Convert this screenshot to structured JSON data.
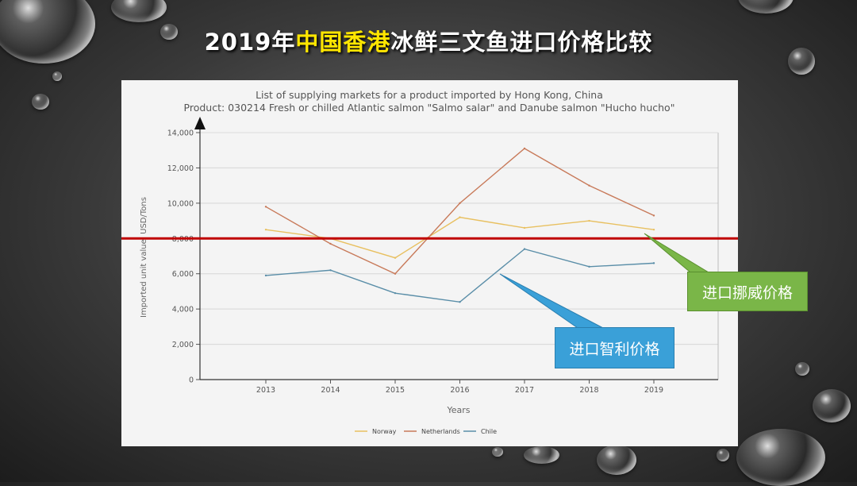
{
  "slide": {
    "title_prefix": "2019年",
    "title_highlight": "中国香港",
    "title_suffix": "冰鲜三文鱼进口价格比较"
  },
  "callouts": {
    "norway": "进口挪威价格",
    "chile": "进口智利价格"
  },
  "reference_line": {
    "value": 8000,
    "color": "#c00000"
  },
  "chart_data": {
    "type": "line",
    "title": "List of supplying markets for a product imported by Hong Kong, China",
    "subtitle": "Product: 030214 Fresh or chilled Atlantic salmon \"Salmo salar\" and Danube salmon \"Hucho hucho\"",
    "xlabel": "Years",
    "ylabel": "Imported unit value, USD/Tons",
    "x": [
      "2013",
      "2014",
      "2015",
      "2016",
      "2017",
      "2018",
      "2019"
    ],
    "ylim": [
      0,
      14000
    ],
    "yticks": [
      0,
      2000,
      4000,
      6000,
      8000,
      10000,
      12000,
      14000
    ],
    "ytick_labels": [
      "0",
      "2,000",
      "4,000",
      "6,000",
      "8,000",
      "10,000",
      "12,000",
      "14,000"
    ],
    "grid": true,
    "legend_position": "bottom",
    "series": [
      {
        "name": "Norway",
        "color": "#e8c060",
        "values": [
          8500,
          8000,
          6900,
          9200,
          8600,
          9000,
          8500
        ]
      },
      {
        "name": "Netherlands",
        "color": "#c87a5a",
        "values": [
          9800,
          7700,
          6000,
          10000,
          13100,
          11000,
          9300
        ]
      },
      {
        "name": "Chile",
        "color": "#5a8ea8",
        "values": [
          5900,
          6200,
          4900,
          4400,
          7400,
          6400,
          6600
        ]
      }
    ]
  }
}
